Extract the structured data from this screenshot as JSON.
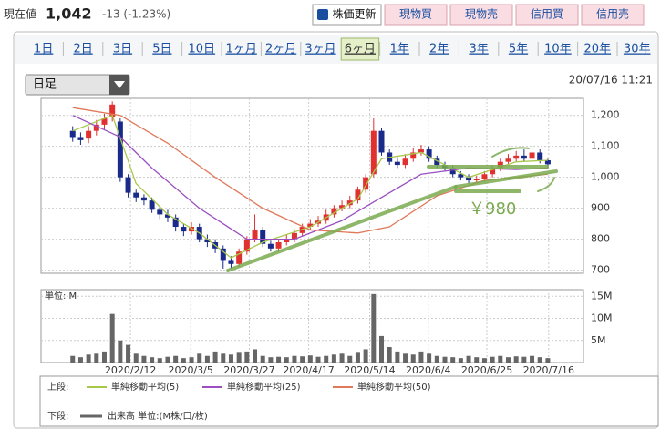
{
  "header": {
    "label": "現在値",
    "price": "1,042",
    "change": "-13 (-1.23%)"
  },
  "buttons": [
    "株価更新",
    "現物買",
    "現物売",
    "信用買",
    "信用売"
  ],
  "tabs": [
    "1日",
    "2日",
    "3日",
    "5日",
    "10日",
    "1ヶ月",
    "2ヶ月",
    "3ヶ月",
    "6ヶ月",
    "1年",
    "2年",
    "3年",
    "5年",
    "10年",
    "20年",
    "30年"
  ],
  "active_tab": 8,
  "dropdown": "日足",
  "timestamp": "20/07/16 11:21",
  "annotations": [
    "￥980"
  ],
  "chart_data": [
    {
      "type": "candlestick",
      "legend_title": "上段:",
      "up_color": "#e03030",
      "down_color": "#1a2a8a",
      "xlim": [
        -4,
        64.5
      ],
      "ylim": [
        690,
        1255
      ],
      "yticks": [
        {
          "value": 1200,
          "label": "1,200"
        },
        {
          "value": 1100,
          "label": "1,100"
        },
        {
          "value": 1000,
          "label": "1,000"
        },
        900,
        800,
        700
      ],
      "open": [
        1150,
        1130,
        1125,
        1150,
        1170,
        1195,
        1180,
        1000,
        950,
        935,
        925,
        895,
        880,
        870,
        840,
        825,
        840,
        800,
        790,
        770,
        730,
        720,
        760,
        800,
        830,
        785,
        770,
        790,
        800,
        820,
        840,
        850,
        860,
        880,
        900,
        910,
        925,
        960,
        1010,
        1150,
        1080,
        1050,
        1040,
        1060,
        1080,
        1090,
        1060,
        1040,
        1030,
        1010,
        1000,
        990,
        995,
        1010,
        1030,
        1050,
        1060,
        1070,
        1060,
        1080,
        1055
      ],
      "high": [
        1165,
        1145,
        1165,
        1185,
        1205,
        1245,
        1190,
        1010,
        960,
        945,
        935,
        905,
        895,
        880,
        850,
        855,
        850,
        815,
        800,
        780,
        745,
        770,
        810,
        880,
        840,
        795,
        800,
        815,
        830,
        850,
        865,
        875,
        895,
        910,
        925,
        940,
        970,
        1010,
        1190,
        1160,
        1090,
        1065,
        1075,
        1095,
        1105,
        1100,
        1070,
        1050,
        1040,
        1020,
        1010,
        1005,
        1020,
        1040,
        1060,
        1075,
        1085,
        1090,
        1095,
        1090,
        1060
      ],
      "low": [
        1115,
        1105,
        1110,
        1135,
        1155,
        1180,
        985,
        935,
        920,
        910,
        885,
        865,
        855,
        825,
        810,
        815,
        790,
        775,
        755,
        705,
        705,
        710,
        750,
        790,
        775,
        760,
        760,
        780,
        790,
        810,
        830,
        840,
        850,
        870,
        890,
        900,
        915,
        950,
        1000,
        1070,
        1040,
        1030,
        1030,
        1050,
        1070,
        1050,
        1030,
        1020,
        1000,
        990,
        980,
        980,
        985,
        1000,
        1020,
        1040,
        1050,
        1050,
        1050,
        1045,
        1030
      ],
      "close": [
        1130,
        1120,
        1150,
        1170,
        1190,
        1235,
        1000,
        950,
        935,
        925,
        895,
        880,
        870,
        840,
        825,
        840,
        800,
        790,
        770,
        730,
        720,
        760,
        800,
        830,
        785,
        770,
        790,
        800,
        820,
        840,
        850,
        860,
        880,
        900,
        910,
        925,
        960,
        1000,
        1150,
        1080,
        1050,
        1040,
        1060,
        1080,
        1090,
        1060,
        1040,
        1030,
        1010,
        1000,
        990,
        995,
        1010,
        1030,
        1050,
        1060,
        1070,
        1060,
        1080,
        1055,
        1042
      ],
      "series": [
        {
          "name": "単純移動平均(5)",
          "color": "#a8c84a",
          "x": [
            0,
            5,
            8,
            12,
            16,
            20,
            24,
            30,
            36,
            39,
            44,
            50,
            56,
            60
          ],
          "values": [
            1150,
            1200,
            980,
            880,
            820,
            740,
            790,
            840,
            930,
            1060,
            1080,
            1000,
            1050,
            1055
          ]
        },
        {
          "name": "単純移動平均(25)",
          "color": "#9b4fc0",
          "x": [
            0,
            6,
            10,
            16,
            22,
            28,
            34,
            38,
            44,
            50,
            56,
            60
          ],
          "values": [
            1200,
            1130,
            1030,
            900,
            800,
            800,
            860,
            920,
            1010,
            1030,
            1025,
            1030
          ]
        },
        {
          "name": "単純移動平均(50)",
          "color": "#e0785a",
          "x": [
            0,
            6,
            12,
            18,
            24,
            30,
            36,
            40,
            46,
            52,
            60
          ],
          "values": [
            1225,
            1200,
            1110,
            1000,
            900,
            830,
            820,
            840,
            940,
            990,
            1010
          ]
        }
      ]
    },
    {
      "type": "bar",
      "legend_title": "下段:",
      "unit_label": "単位: M",
      "xlim": [
        -4,
        64.5
      ],
      "ylim": [
        0,
        16.5
      ],
      "yticks": [
        {
          "value": 15,
          "label": "15M"
        },
        {
          "value": 10,
          "label": "10M"
        },
        {
          "value": 5,
          "label": "5M"
        }
      ],
      "xticks": [
        {
          "value": 7.3,
          "label": "2020/2/12"
        },
        {
          "value": 14.9,
          "label": "2020/3/5"
        },
        {
          "value": 22.3,
          "label": "2020/3/27"
        },
        {
          "value": 29.8,
          "label": "2020/4/17"
        },
        {
          "value": 37.5,
          "label": "2020/5/14"
        },
        {
          "value": 44.9,
          "label": "2020/6/4"
        },
        {
          "value": 52.3,
          "label": "2020/6/25"
        },
        {
          "value": 60.1,
          "label": "2020/7/16"
        }
      ],
      "series": [
        {
          "name": "出来高 単位:(M株/口/枚)",
          "color": "#666666",
          "values": [
            1.5,
            1.2,
            1.8,
            2,
            2.5,
            11,
            5,
            4,
            2,
            1.5,
            1.2,
            1,
            1.3,
            1.5,
            1,
            1.2,
            2,
            1.5,
            2.5,
            2,
            1.8,
            2.2,
            2.5,
            3,
            1.5,
            1.2,
            1.3,
            1.2,
            1.5,
            1.4,
            1.6,
            1.3,
            1.5,
            1.8,
            2,
            1.5,
            2.2,
            3,
            15.5,
            6,
            3.5,
            2.5,
            2,
            1.8,
            2.5,
            2,
            1.5,
            1.3,
            1.2,
            1,
            1.5,
            1.2,
            1,
            1.3,
            1.5,
            1.2,
            1.4,
            1.3,
            1.5,
            1.2,
            1
          ]
        }
      ]
    }
  ]
}
